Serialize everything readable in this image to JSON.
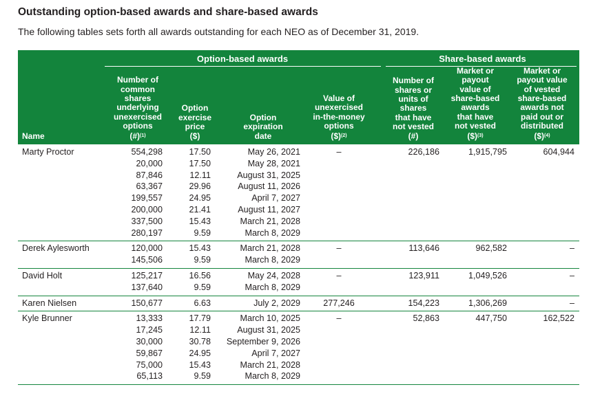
{
  "title": "Outstanding option-based awards and share-based awards",
  "subtitle": "The following tables sets forth all awards outstanding for each NEO as of December 31, 2019.",
  "headers": {
    "option_group": "Option-based awards",
    "share_group": "Share-based awards",
    "name": "Name",
    "num_options": [
      "Number of",
      "common",
      "shares",
      "underlying",
      "unexercised",
      "options"
    ],
    "num_options_unit": "(#)",
    "num_options_note": "(1)",
    "exercise_price": [
      "Option",
      "exercise",
      "price"
    ],
    "exercise_price_unit": "($)",
    "expiration": [
      "Option",
      "expiration",
      "date"
    ],
    "value_unexercised": [
      "Value of",
      "unexercised",
      "in-the-money",
      "options"
    ],
    "value_unexercised_unit": "($)",
    "value_unexercised_note": "(2)",
    "num_shares": [
      "Number of",
      "shares or",
      "units of",
      "shares",
      "that have",
      "not vested"
    ],
    "num_shares_unit": "(#)",
    "market_value": [
      "Market or",
      "payout",
      "value of",
      "share-based",
      "awards",
      "that have",
      "not vested"
    ],
    "market_value_unit": "($)",
    "market_value_note": "(3)",
    "vested_value": [
      "Market or",
      "payout value",
      "of vested",
      "share-based",
      "awards not",
      "paid out or",
      "distributed"
    ],
    "vested_value_unit": "($)",
    "vested_value_note": "(4)"
  },
  "rows": [
    {
      "name": "Marty Proctor",
      "options": [
        {
          "num": "554,298",
          "price": "17.50",
          "date": "May 26, 2021"
        },
        {
          "num": "20,000",
          "price": "17.50",
          "date": "May 28, 2021"
        },
        {
          "num": "87,846",
          "price": "12.11",
          "date": "August 31, 2025"
        },
        {
          "num": "63,367",
          "price": "29.96",
          "date": "August 11, 2026"
        },
        {
          "num": "199,557",
          "price": "24.95",
          "date": "April 7, 2027"
        },
        {
          "num": "200,000",
          "price": "21.41",
          "date": "August 11, 2027"
        },
        {
          "num": "337,500",
          "price": "15.43",
          "date": "March 21, 2028"
        },
        {
          "num": "280,197",
          "price": "9.59",
          "date": "March 8, 2029"
        }
      ],
      "value": "–",
      "shares": "226,186",
      "market": "1,915,795",
      "vested": "604,944"
    },
    {
      "name": "Derek Aylesworth",
      "options": [
        {
          "num": "120,000",
          "price": "15.43",
          "date": "March 21, 2028"
        },
        {
          "num": "145,506",
          "price": "9.59",
          "date": "March 8, 2029"
        }
      ],
      "value": "–",
      "shares": "113,646",
      "market": "962,582",
      "vested": "–"
    },
    {
      "name": "David Holt",
      "options": [
        {
          "num": "125,217",
          "price": "16.56",
          "date": "May 24, 2028"
        },
        {
          "num": "137,640",
          "price": "9.59",
          "date": "March 8, 2029"
        }
      ],
      "value": "–",
      "shares": "123,911",
      "market": "1,049,526",
      "vested": "–"
    },
    {
      "name": "Karen Nielsen",
      "options": [
        {
          "num": "150,677",
          "price": "6.63",
          "date": "July 2, 2029"
        }
      ],
      "value": "277,246",
      "shares": "154,223",
      "market": "1,306,269",
      "vested": "–"
    },
    {
      "name": "Kyle Brunner",
      "options": [
        {
          "num": "13,333",
          "price": "17.79",
          "date": "March 10, 2025"
        },
        {
          "num": "17,245",
          "price": "12.11",
          "date": "August 31, 2025"
        },
        {
          "num": "30,000",
          "price": "30.78",
          "date": "September 9, 2026"
        },
        {
          "num": "59,867",
          "price": "24.95",
          "date": "April 7, 2027"
        },
        {
          "num": "75,000",
          "price": "15.43",
          "date": "March 21, 2028"
        },
        {
          "num": "65,113",
          "price": "9.59",
          "date": "March 8, 2029"
        }
      ],
      "value": "–",
      "shares": "52,863",
      "market": "447,750",
      "vested": "162,522"
    }
  ]
}
